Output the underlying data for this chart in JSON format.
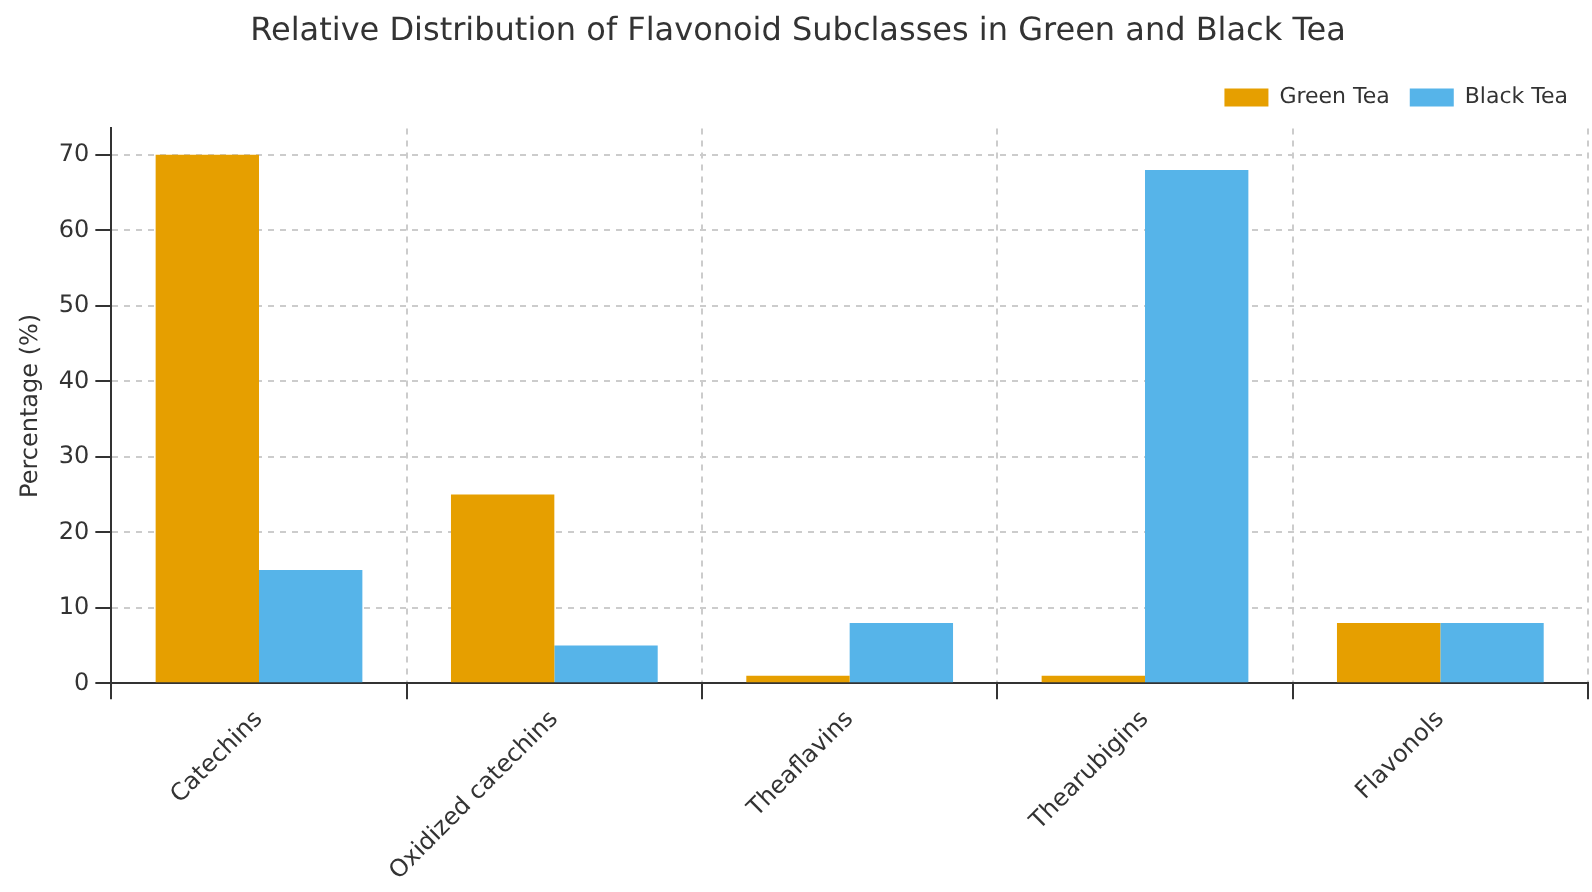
{
  "chart_data": {
    "type": "bar",
    "title": "Relative Distribution of Flavonoid Subclasses in Green and Black Tea",
    "ylabel": "Percentage (%)",
    "categories": [
      "Catechins",
      "Oxidized catechins",
      "Theaflavins",
      "Thearubigins",
      "Flavonols"
    ],
    "series": [
      {
        "name": "Green Tea",
        "color": "#e69f00",
        "values": [
          70,
          25,
          1,
          1,
          8
        ]
      },
      {
        "name": "Black Tea",
        "color": "#56b4e9",
        "values": [
          15,
          5,
          8,
          68,
          8
        ]
      }
    ],
    "ylim": [
      0,
      73.5
    ],
    "yticks": [
      0,
      10,
      20,
      30,
      40,
      50,
      60,
      70
    ],
    "grid": true,
    "legend": "top right"
  }
}
